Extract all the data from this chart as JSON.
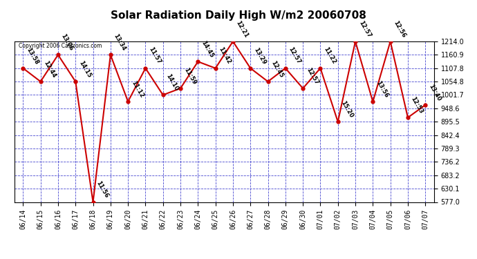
{
  "title": "Solar Radiation Daily High W/m2 20060708",
  "copyright": "Copyright 2006 Castronics.com",
  "background_color": "#ffffff",
  "plot_bg_color": "#ffffff",
  "grid_color": "#3333cc",
  "line_color": "#cc0000",
  "marker_color": "#cc0000",
  "dates": [
    "06/14",
    "06/15",
    "06/16",
    "06/17",
    "06/18",
    "06/19",
    "06/20",
    "06/21",
    "06/22",
    "06/23",
    "06/24",
    "06/25",
    "06/26",
    "06/27",
    "06/28",
    "06/29",
    "06/30",
    "07/01",
    "07/02",
    "07/03",
    "07/04",
    "07/05",
    "07/06",
    "07/07"
  ],
  "values": [
    1107.8,
    1054.8,
    1160.9,
    1054.8,
    577.0,
    1160.9,
    975.6,
    1107.8,
    1001.7,
    1028.0,
    1134.0,
    1107.8,
    1214.0,
    1107.8,
    1054.8,
    1107.8,
    1028.0,
    1107.8,
    895.5,
    1214.0,
    975.0,
    1214.0,
    912.0,
    962.0
  ],
  "time_labels": [
    "13:58",
    "12:44",
    "13:06",
    "14:15",
    "11:56",
    "13:34",
    "11:12",
    "11:57",
    "14:10",
    "11:59",
    "14:45",
    "11:42",
    "12:21",
    "13:29",
    "12:45",
    "12:57",
    "12:57",
    "11:22",
    "15:20",
    "12:57",
    "13:56",
    "12:56",
    "12:53",
    "13:40"
  ],
  "ylim_min": 577.0,
  "ylim_max": 1214.0,
  "yticks": [
    577.0,
    630.1,
    683.2,
    736.2,
    789.3,
    842.4,
    895.5,
    948.6,
    1001.7,
    1054.8,
    1107.8,
    1160.9,
    1214.0
  ],
  "title_fontsize": 11,
  "tick_fontsize": 7,
  "annot_fontsize": 6
}
